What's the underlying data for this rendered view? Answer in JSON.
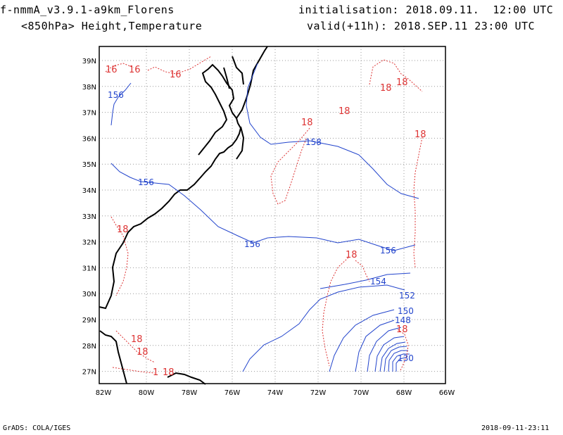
{
  "header": {
    "model": "f-nmmA_v3.9.1-a9km_Florens",
    "fields": "<850hPa> Height,Temperature",
    "init": "initialisation: 2018.09.11.  12:00 UTC",
    "valid": "valid(+11h): 2018.SEP.11 23:00 UTC"
  },
  "axes": {
    "x_ticks": [
      "82W",
      "80W",
      "78W",
      "76W",
      "74W",
      "72W",
      "70W",
      "68W",
      "66W"
    ],
    "y_ticks": [
      "39N",
      "38N",
      "37N",
      "36N",
      "35N",
      "34N",
      "33N",
      "32N",
      "31N",
      "30N",
      "29N",
      "28N",
      "27N"
    ]
  },
  "colors": {
    "height": "#2244cc",
    "temperature": "#dd3333",
    "coast": "#000000",
    "grid": "#999999"
  },
  "height_labels": [
    "156",
    "158",
    "156",
    "156",
    "156",
    "154",
    "152",
    "150",
    "148",
    "130"
  ],
  "temp_labels": [
    "16",
    "16",
    "16",
    "18",
    "18",
    "18",
    "18",
    "18",
    "18",
    "18",
    "18",
    "18",
    "18",
    "1",
    "18"
  ],
  "footer": {
    "left": "GrADS: COLA/IGES",
    "right": "2018-09-11-23:11"
  }
}
